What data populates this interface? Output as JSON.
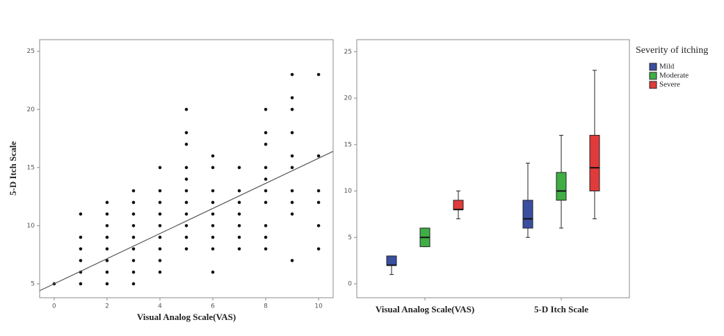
{
  "chart_data": [
    {
      "type": "scatter",
      "x_label": "Visual Analog Scale(VAS)",
      "y_label": "5-D Itch Scale",
      "x": [
        0,
        1,
        1,
        1,
        1,
        1,
        1,
        2,
        2,
        2,
        2,
        2,
        2,
        2,
        2,
        3,
        3,
        3,
        3,
        3,
        3,
        3,
        3,
        3,
        4,
        4,
        4,
        4,
        4,
        4,
        4,
        4,
        4,
        5,
        5,
        5,
        5,
        5,
        5,
        5,
        5,
        5,
        5,
        5,
        6,
        6,
        6,
        6,
        6,
        6,
        6,
        6,
        6,
        7,
        7,
        7,
        7,
        7,
        7,
        7,
        8,
        8,
        8,
        8,
        8,
        8,
        8,
        8,
        8,
        8,
        9,
        9,
        9,
        9,
        9,
        9,
        9,
        9,
        9,
        9,
        10,
        10,
        10,
        10,
        10,
        10
      ],
      "values": [
        5,
        11,
        9,
        8,
        7,
        6,
        5,
        12,
        11,
        10,
        9,
        8,
        7,
        6,
        5,
        13,
        12,
        11,
        10,
        9,
        8,
        7,
        6,
        5,
        15,
        13,
        12,
        11,
        10,
        9,
        8,
        7,
        6,
        20,
        18,
        17,
        15,
        14,
        13,
        12,
        11,
        10,
        9,
        8,
        16,
        15,
        13,
        12,
        11,
        10,
        9,
        8,
        6,
        15,
        13,
        12,
        11,
        10,
        9,
        8,
        20,
        18,
        17,
        15,
        14,
        13,
        12,
        10,
        9,
        8,
        23,
        21,
        20,
        18,
        16,
        15,
        13,
        12,
        11,
        7,
        23,
        16,
        13,
        12,
        10,
        8
      ],
      "color": "#111111",
      "trendline": {
        "intercept": 5,
        "slope": 1.08,
        "color": "#555555"
      },
      "xlim": [
        -0.55,
        10.55
      ],
      "xticks": [
        0,
        2,
        4,
        6,
        8,
        10
      ],
      "ylim": [
        3.8,
        26
      ],
      "yticks": [
        5,
        10,
        15,
        20,
        25
      ]
    },
    {
      "type": "box",
      "categories": [
        "Visual Analog Scale(VAS)",
        "5-D Itch Scale"
      ],
      "legend_title": "Severity of itching",
      "legend": "upper right",
      "series": [
        {
          "name": "Mild",
          "color": "#3a4fa0",
          "values": [
            {
              "min": 1,
              "q1": 2,
              "median": 2,
              "q3": 3,
              "max": 3
            },
            {
              "min": 5,
              "q1": 6,
              "median": 7,
              "q3": 9,
              "max": 13
            }
          ]
        },
        {
          "name": "Moderate",
          "color": "#3fae45",
          "values": [
            {
              "min": 4,
              "q1": 4,
              "median": 5,
              "q3": 6,
              "max": 6
            },
            {
              "min": 6,
              "q1": 9,
              "median": 10,
              "q3": 12,
              "max": 16
            }
          ]
        },
        {
          "name": "Severe",
          "color": "#e03a3a",
          "values": [
            {
              "min": 7,
              "q1": 8,
              "median": 8,
              "q3": 9,
              "max": 10
            },
            {
              "min": 7,
              "q1": 10,
              "median": 12.5,
              "q3": 16,
              "max": 23
            }
          ]
        }
      ],
      "ylim": [
        -1.5,
        26.3
      ],
      "yticks": [
        0,
        5,
        10,
        15,
        20,
        25
      ]
    }
  ]
}
